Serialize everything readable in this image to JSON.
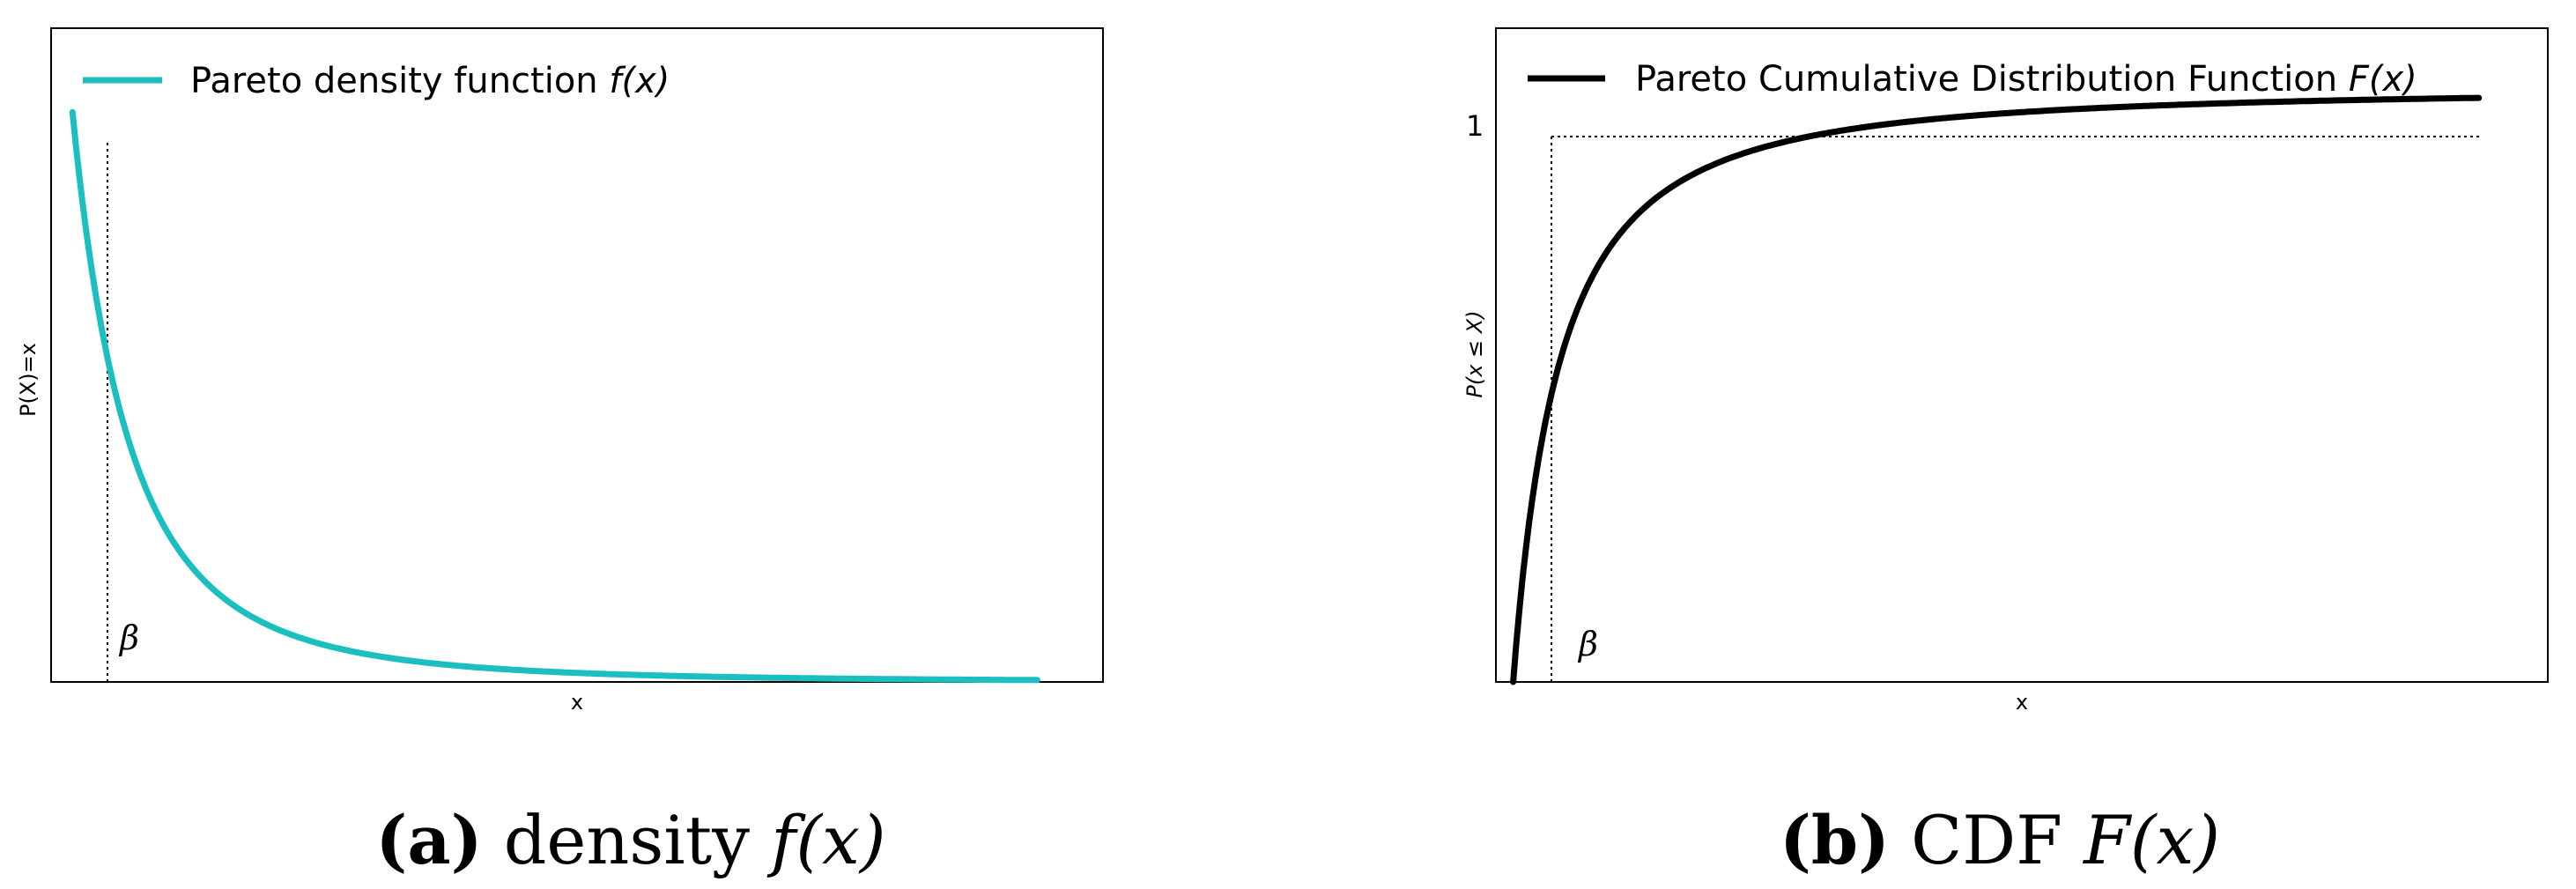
{
  "chart_data": [
    {
      "type": "line",
      "legend": {
        "text": "Pareto density function ",
        "math": "f(x)",
        "color": "#1bbfbf",
        "position": "top-left"
      },
      "xlabel": "x",
      "ylabel": "P(X)=x",
      "annotation": "β",
      "series": [
        {
          "name": "Pareto density function f(x)",
          "color": "#1bbfbf",
          "x_min": 1.03,
          "x_max": 6.9,
          "alpha": 2
        }
      ],
      "xlim": [
        0.9,
        7.3
      ],
      "ylim": [
        0,
        1.05
      ],
      "grid": false,
      "reference_line_x": 1
    },
    {
      "type": "line",
      "legend": {
        "text": "Pareto Cumulative Distribution Function ",
        "math": "F(x)",
        "color": "#000000",
        "position": "top-left"
      },
      "xlabel": "x",
      "ylabel": "P(x ≤ X)",
      "annotation": "β",
      "tick_label_y": "1",
      "series": [
        {
          "name": "Pareto Cumulative Distribution Function F(x)",
          "color": "#000000",
          "x_min": 1.0,
          "x_max": 15.0,
          "alpha": 1.5
        }
      ],
      "xlim": [
        0.75,
        16.0
      ],
      "ylim": [
        0,
        1.1
      ],
      "grid": false,
      "reference_line_x": 0.97,
      "reference_line_y": 1
    }
  ],
  "captions": [
    {
      "label": "(a)",
      "text": " density ",
      "math": "f(x)"
    },
    {
      "label": "(b)",
      "text": " CDF ",
      "math": "F(x)"
    }
  ]
}
